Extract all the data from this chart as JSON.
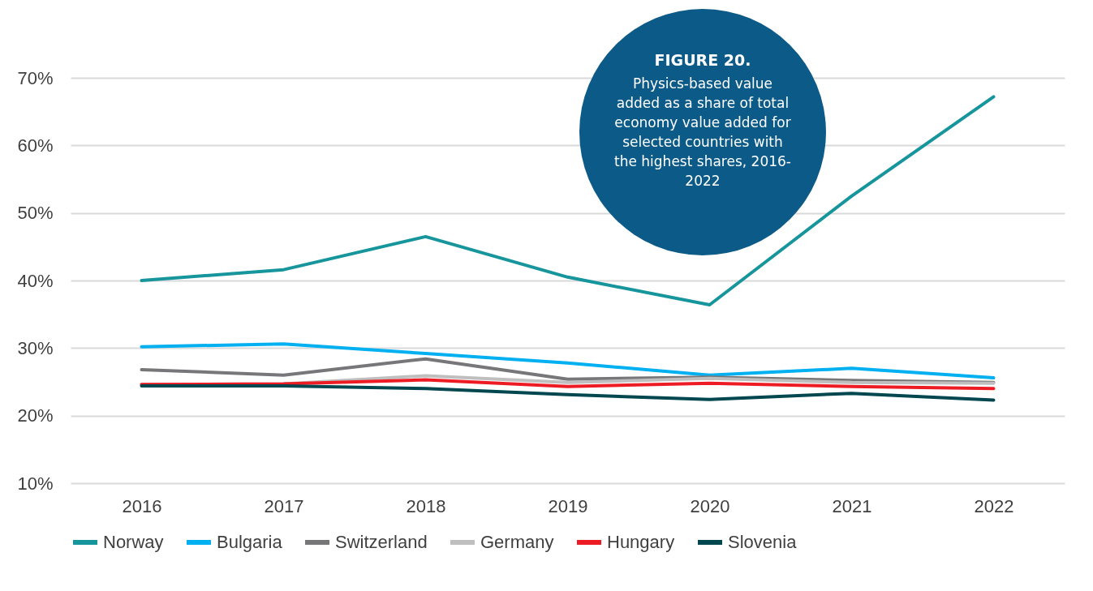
{
  "chart_data": {
    "type": "line",
    "title": "FIGURE 20.",
    "subtitle": "Physics-based value added as a share of total economy value added for selected countries with the highest shares, 2016-2022",
    "categories": [
      "2016",
      "2017",
      "2018",
      "2019",
      "2020",
      "2021",
      "2022"
    ],
    "series": [
      {
        "name": "Norway",
        "color": "#16959c",
        "values": [
          40.0,
          41.6,
          46.5,
          40.5,
          36.4,
          52.5,
          67.2
        ]
      },
      {
        "name": "Bulgaria",
        "color": "#00b0f0",
        "values": [
          30.2,
          30.6,
          29.2,
          27.8,
          26.0,
          27.0,
          25.6
        ]
      },
      {
        "name": "Switzerland",
        "color": "#77777a",
        "values": [
          26.8,
          26.0,
          28.4,
          25.4,
          25.7,
          25.2,
          24.9
        ]
      },
      {
        "name": "Germany",
        "color": "#bfbfbf",
        "values": [
          24.6,
          24.7,
          25.9,
          24.9,
          25.5,
          24.9,
          24.8
        ]
      },
      {
        "name": "Hungary",
        "color": "#ed1c24",
        "values": [
          24.6,
          24.7,
          25.3,
          24.3,
          24.8,
          24.3,
          24.0
        ]
      },
      {
        "name": "Slovenia",
        "color": "#004750",
        "values": [
          24.4,
          24.4,
          24.0,
          23.1,
          22.4,
          23.3,
          22.3
        ]
      }
    ],
    "ylim": [
      10,
      70
    ],
    "yticks": [
      {
        "value": 10,
        "label": "10%"
      },
      {
        "value": 20,
        "label": "20%"
      },
      {
        "value": 30,
        "label": "30%"
      },
      {
        "value": 40,
        "label": "40%"
      },
      {
        "value": 50,
        "label": "50%"
      },
      {
        "value": 60,
        "label": "60%"
      },
      {
        "value": 70,
        "label": "70%"
      }
    ],
    "grid": "y",
    "legend": "bottom",
    "marker": "none",
    "line_style": "solid"
  }
}
